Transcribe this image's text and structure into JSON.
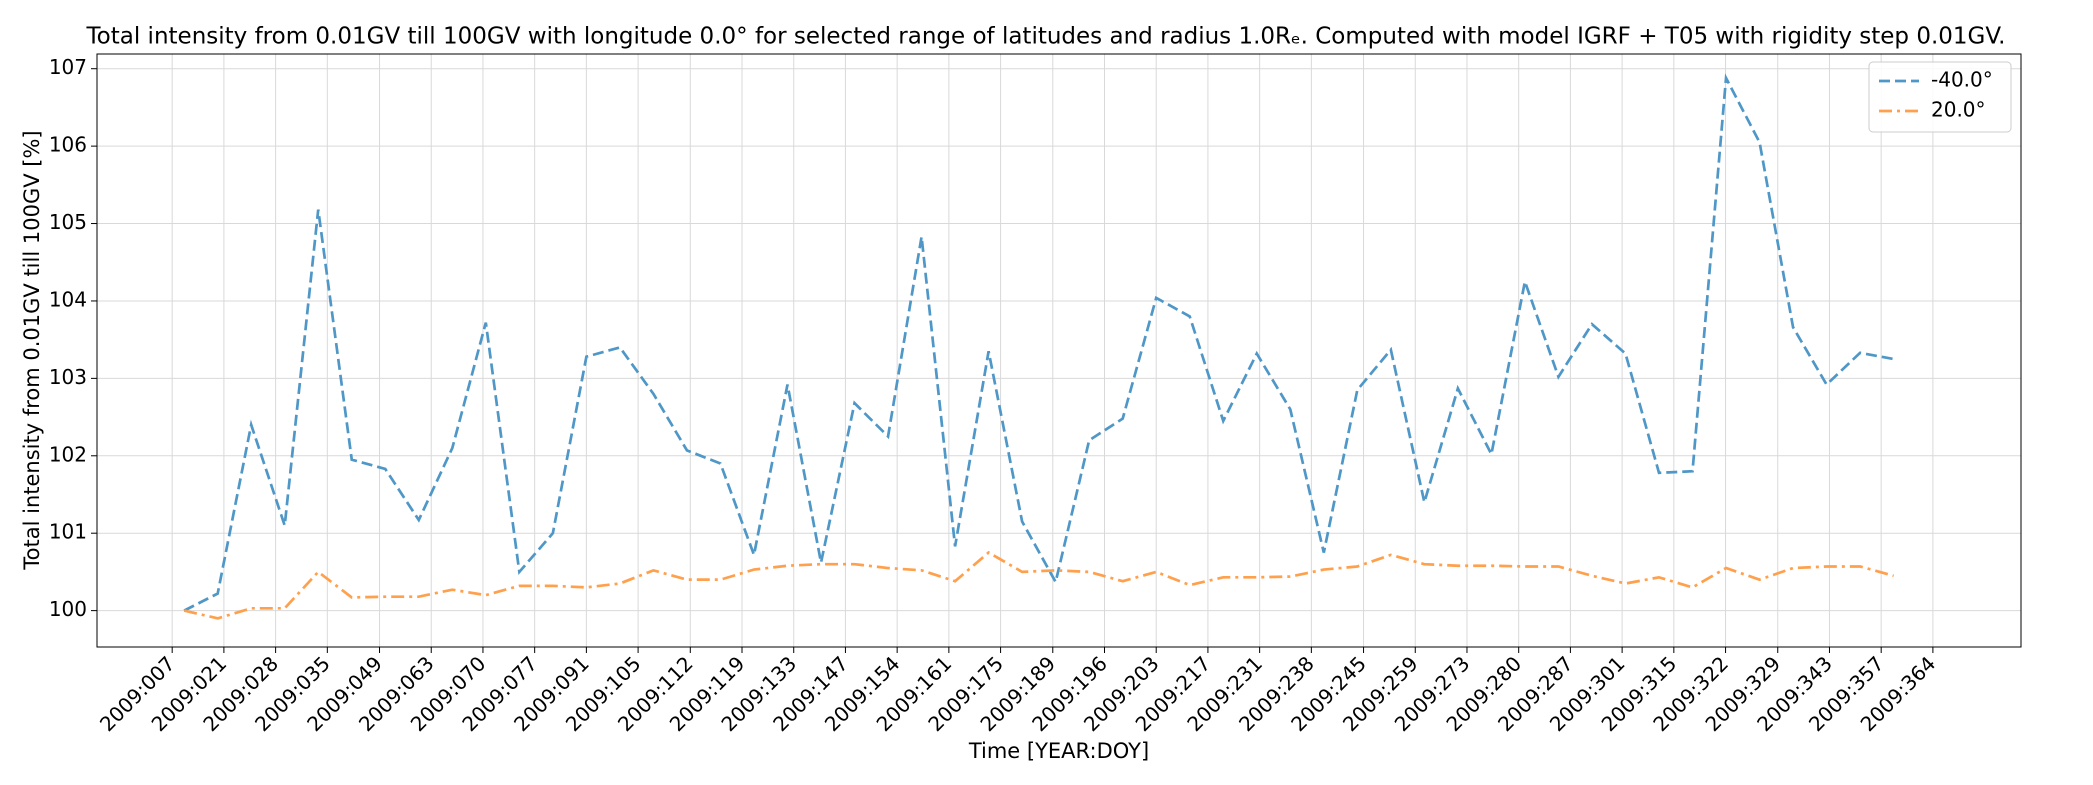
{
  "chart_data": {
    "type": "line",
    "title": "Total intensity from 0.01GV till 100GV with longitude 0.0° for selected range of latitudes and radius 1.0Rₑ. Computed with model IGRF + T05 with rigidity step 0.01GV.",
    "xlabel": "Time [YEAR:DOY]",
    "ylabel": "Total intensity from 0.01GV till 100GV [%]",
    "x": [
      7,
      14,
      21,
      28,
      35,
      42,
      49,
      56,
      63,
      70,
      77,
      84,
      91,
      98,
      105,
      112,
      119,
      126,
      133,
      140,
      147,
      154,
      161,
      168,
      175,
      182,
      189,
      196,
      203,
      210,
      217,
      224,
      231,
      238,
      245,
      252,
      259,
      266,
      273,
      280,
      287,
      294,
      301,
      308,
      315,
      322,
      329,
      336,
      343,
      350,
      357,
      364
    ],
    "series": [
      {
        "name": "-40.0°",
        "color": "#4f97c7",
        "linestyle": "dashed",
        "values": [
          100.0,
          100.22,
          102.4,
          101.1,
          105.18,
          101.95,
          101.83,
          101.17,
          102.1,
          103.72,
          100.5,
          101.0,
          103.28,
          103.4,
          102.8,
          102.07,
          101.9,
          100.72,
          102.92,
          100.62,
          102.68,
          102.25,
          104.83,
          100.83,
          103.35,
          101.15,
          100.37,
          102.2,
          102.48,
          104.04,
          103.8,
          102.45,
          103.32,
          102.6,
          100.75,
          102.85,
          103.37,
          101.4,
          102.87,
          102.02,
          104.25,
          103.02,
          103.7,
          103.32,
          101.78,
          101.8,
          106.88,
          106.05,
          103.66,
          102.92,
          103.33,
          103.25
        ]
      },
      {
        "name": "20.0°",
        "color": "#ffa04d",
        "linestyle": "dashdot",
        "values": [
          100.0,
          99.9,
          100.03,
          100.03,
          100.5,
          100.17,
          100.18,
          100.18,
          100.27,
          100.2,
          100.32,
          100.32,
          100.3,
          100.35,
          100.52,
          100.4,
          100.4,
          100.53,
          100.58,
          100.6,
          100.6,
          100.55,
          100.52,
          100.38,
          100.75,
          100.5,
          100.52,
          100.5,
          100.38,
          100.5,
          100.33,
          100.43,
          100.43,
          100.44,
          100.53,
          100.57,
          100.72,
          100.6,
          100.58,
          100.58,
          100.57,
          100.57,
          100.45,
          100.35,
          100.43,
          100.3,
          100.55,
          100.4,
          100.55,
          100.57,
          100.57,
          100.45
        ]
      }
    ],
    "xlim": [
      -11.2,
      390.6
    ],
    "xticks": [
      {
        "value": 4.5,
        "label": "2009:007"
      },
      {
        "value": 15.3,
        "label": "2009:021"
      },
      {
        "value": 26.1,
        "label": "2009:028"
      },
      {
        "value": 36.9,
        "label": "2009:035"
      },
      {
        "value": 47.8,
        "label": "2009:049"
      },
      {
        "value": 58.6,
        "label": "2009:063"
      },
      {
        "value": 69.4,
        "label": "2009:070"
      },
      {
        "value": 80.2,
        "label": "2009:077"
      },
      {
        "value": 91.0,
        "label": "2009:091"
      },
      {
        "value": 101.8,
        "label": "2009:105"
      },
      {
        "value": 112.7,
        "label": "2009:112"
      },
      {
        "value": 123.5,
        "label": "2009:119"
      },
      {
        "value": 134.3,
        "label": "2009:133"
      },
      {
        "value": 145.1,
        "label": "2009:147"
      },
      {
        "value": 155.9,
        "label": "2009:154"
      },
      {
        "value": 166.7,
        "label": "2009:161"
      },
      {
        "value": 177.5,
        "label": "2009:175"
      },
      {
        "value": 188.4,
        "label": "2009:189"
      },
      {
        "value": 199.2,
        "label": "2009:196"
      },
      {
        "value": 210.0,
        "label": "2009:203"
      },
      {
        "value": 220.8,
        "label": "2009:217"
      },
      {
        "value": 231.6,
        "label": "2009:231"
      },
      {
        "value": 242.4,
        "label": "2009:238"
      },
      {
        "value": 253.3,
        "label": "2009:245"
      },
      {
        "value": 264.1,
        "label": "2009:259"
      },
      {
        "value": 274.9,
        "label": "2009:273"
      },
      {
        "value": 285.7,
        "label": "2009:280"
      },
      {
        "value": 296.5,
        "label": "2009:287"
      },
      {
        "value": 307.3,
        "label": "2009:301"
      },
      {
        "value": 318.1,
        "label": "2009:315"
      },
      {
        "value": 328.9,
        "label": "2009:322"
      },
      {
        "value": 339.8,
        "label": "2009:329"
      },
      {
        "value": 350.6,
        "label": "2009:343"
      },
      {
        "value": 361.4,
        "label": "2009:357"
      },
      {
        "value": 372.2,
        "label": "2009:364"
      }
    ],
    "ylim": [
      99.53,
      107.19
    ],
    "yticks": [
      100,
      101,
      102,
      103,
      104,
      105,
      106,
      107
    ],
    "grid": true,
    "legend": "upper right"
  }
}
